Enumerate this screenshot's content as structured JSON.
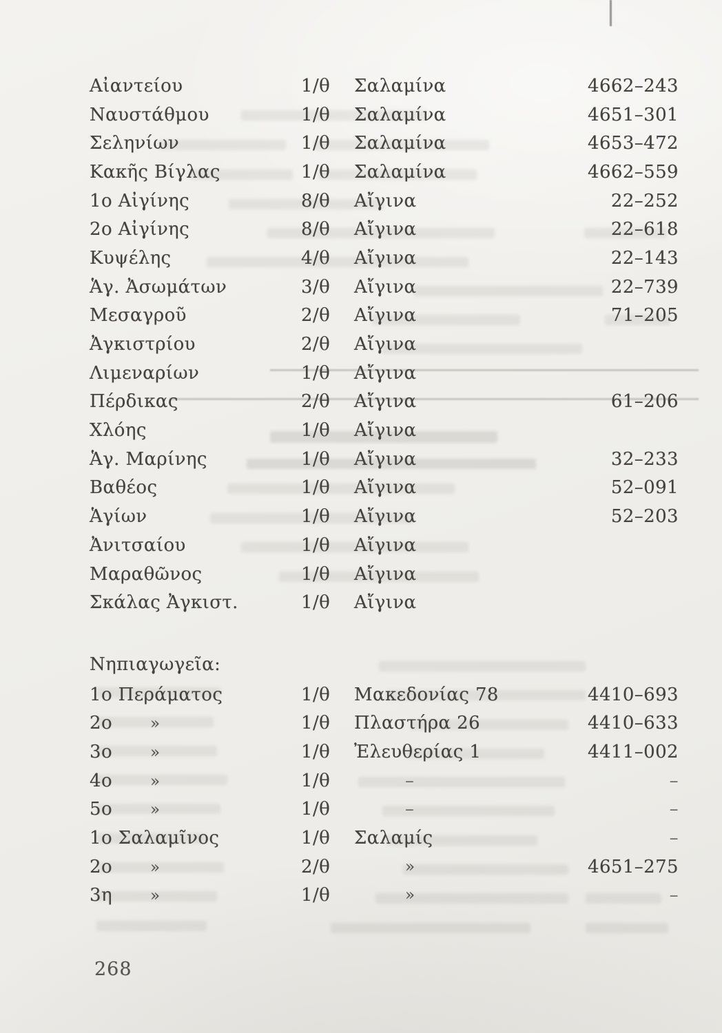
{
  "page": {
    "number": "268"
  },
  "sections": [
    {
      "header": "",
      "rows": [
        {
          "name": "Αἰαντείου",
          "name_ditto": "",
          "ratio": "1/θ",
          "location": "Σαλαμίνα",
          "phone": "4662–243"
        },
        {
          "name": "Ναυστάθμου",
          "name_ditto": "",
          "ratio": "1/θ",
          "location": "Σαλαμίνα",
          "phone": "4651–301"
        },
        {
          "name": "Σεληνίων",
          "name_ditto": "",
          "ratio": "1/θ",
          "location": "Σαλαμίνα",
          "phone": "4653–472"
        },
        {
          "name": "Κακῆς Βίγλας",
          "name_ditto": "",
          "ratio": "1/θ",
          "location": "Σαλαμίνα",
          "phone": "4662–559"
        },
        {
          "name": "1ο Αἰγίνης",
          "name_ditto": "",
          "ratio": "8/θ",
          "location": "Αἴγινα",
          "phone": "22–252"
        },
        {
          "name": "2ο Αἰγίνης",
          "name_ditto": "",
          "ratio": "8/θ",
          "location": "Αἴγινα",
          "phone": "22–618"
        },
        {
          "name": "Κυψέλης",
          "name_ditto": "",
          "ratio": "4/θ",
          "location": "Αἴγινα",
          "phone": "22–143"
        },
        {
          "name": "Ἁγ. Ἀσωμάτων",
          "name_ditto": "",
          "ratio": "3/θ",
          "location": "Αἴγινα",
          "phone": "22–739"
        },
        {
          "name": "Μεσαγροῦ",
          "name_ditto": "",
          "ratio": "2/θ",
          "location": "Αἴγινα",
          "phone": "71–205"
        },
        {
          "name": "Ἀγκιστρίου",
          "name_ditto": "",
          "ratio": "2/θ",
          "location": "Αἴγινα",
          "phone": ""
        },
        {
          "name": "Λιμεναρίων",
          "name_ditto": "",
          "ratio": "1/θ",
          "location": "Αἴγινα",
          "phone": ""
        },
        {
          "name": "Πέρδικας",
          "name_ditto": "",
          "ratio": "2/θ",
          "location": "Αἴγινα",
          "phone": "61–206"
        },
        {
          "name": "Χλόης",
          "name_ditto": "",
          "ratio": "1/θ",
          "location": "Αἴγινα",
          "phone": ""
        },
        {
          "name": "Ἁγ. Μαρίνης",
          "name_ditto": "",
          "ratio": "1/θ",
          "location": "Αἴγινα",
          "phone": "32–233"
        },
        {
          "name": "Βαθέος",
          "name_ditto": "",
          "ratio": "1/θ",
          "location": "Αἴγινα",
          "phone": "52–091"
        },
        {
          "name": "Ἁγίων",
          "name_ditto": "",
          "ratio": "1/θ",
          "location": "Αἴγινα",
          "phone": "52–203"
        },
        {
          "name": "Ἀνιτσαίου",
          "name_ditto": "",
          "ratio": "1/θ",
          "location": "Αἴγινα",
          "phone": ""
        },
        {
          "name": "Μαραθῶνος",
          "name_ditto": "",
          "ratio": "1/θ",
          "location": "Αἴγινα",
          "phone": ""
        },
        {
          "name": "Σκάλας Ἀγκιστ.",
          "name_ditto": "",
          "ratio": "1/θ",
          "location": "Αἴγινα",
          "phone": ""
        }
      ]
    },
    {
      "header": "Νηπιαγωγεῖα:",
      "rows": [
        {
          "name": "1ο Περάματος",
          "name_ditto": "",
          "ratio": "1/θ",
          "location": "Μακεδονίας 78",
          "phone": "4410–693"
        },
        {
          "name": "2ο",
          "name_ditto": "»",
          "ratio": "1/θ",
          "location": "Πλαστήρα 26",
          "phone": "4410–633"
        },
        {
          "name": "3ο",
          "name_ditto": "»",
          "ratio": "1/θ",
          "location": "Ἐλευθερίας 1",
          "phone": "4411–002"
        },
        {
          "name": "4ο",
          "name_ditto": "»",
          "ratio": "1/θ",
          "location": "–",
          "phone": "–"
        },
        {
          "name": "5ο",
          "name_ditto": "»",
          "ratio": "1/θ",
          "location": "–",
          "phone": "–"
        },
        {
          "name": "1ο Σαλαμῖνος",
          "name_ditto": "",
          "ratio": "1/θ",
          "location": "Σαλαμίς",
          "phone": "–"
        },
        {
          "name": "2ο",
          "name_ditto": "»",
          "ratio": "2/θ",
          "location": "»",
          "phone": "4651–275"
        },
        {
          "name": "3η",
          "name_ditto": "»",
          "ratio": "1/θ",
          "location": "»",
          "phone": "–"
        }
      ]
    }
  ]
}
